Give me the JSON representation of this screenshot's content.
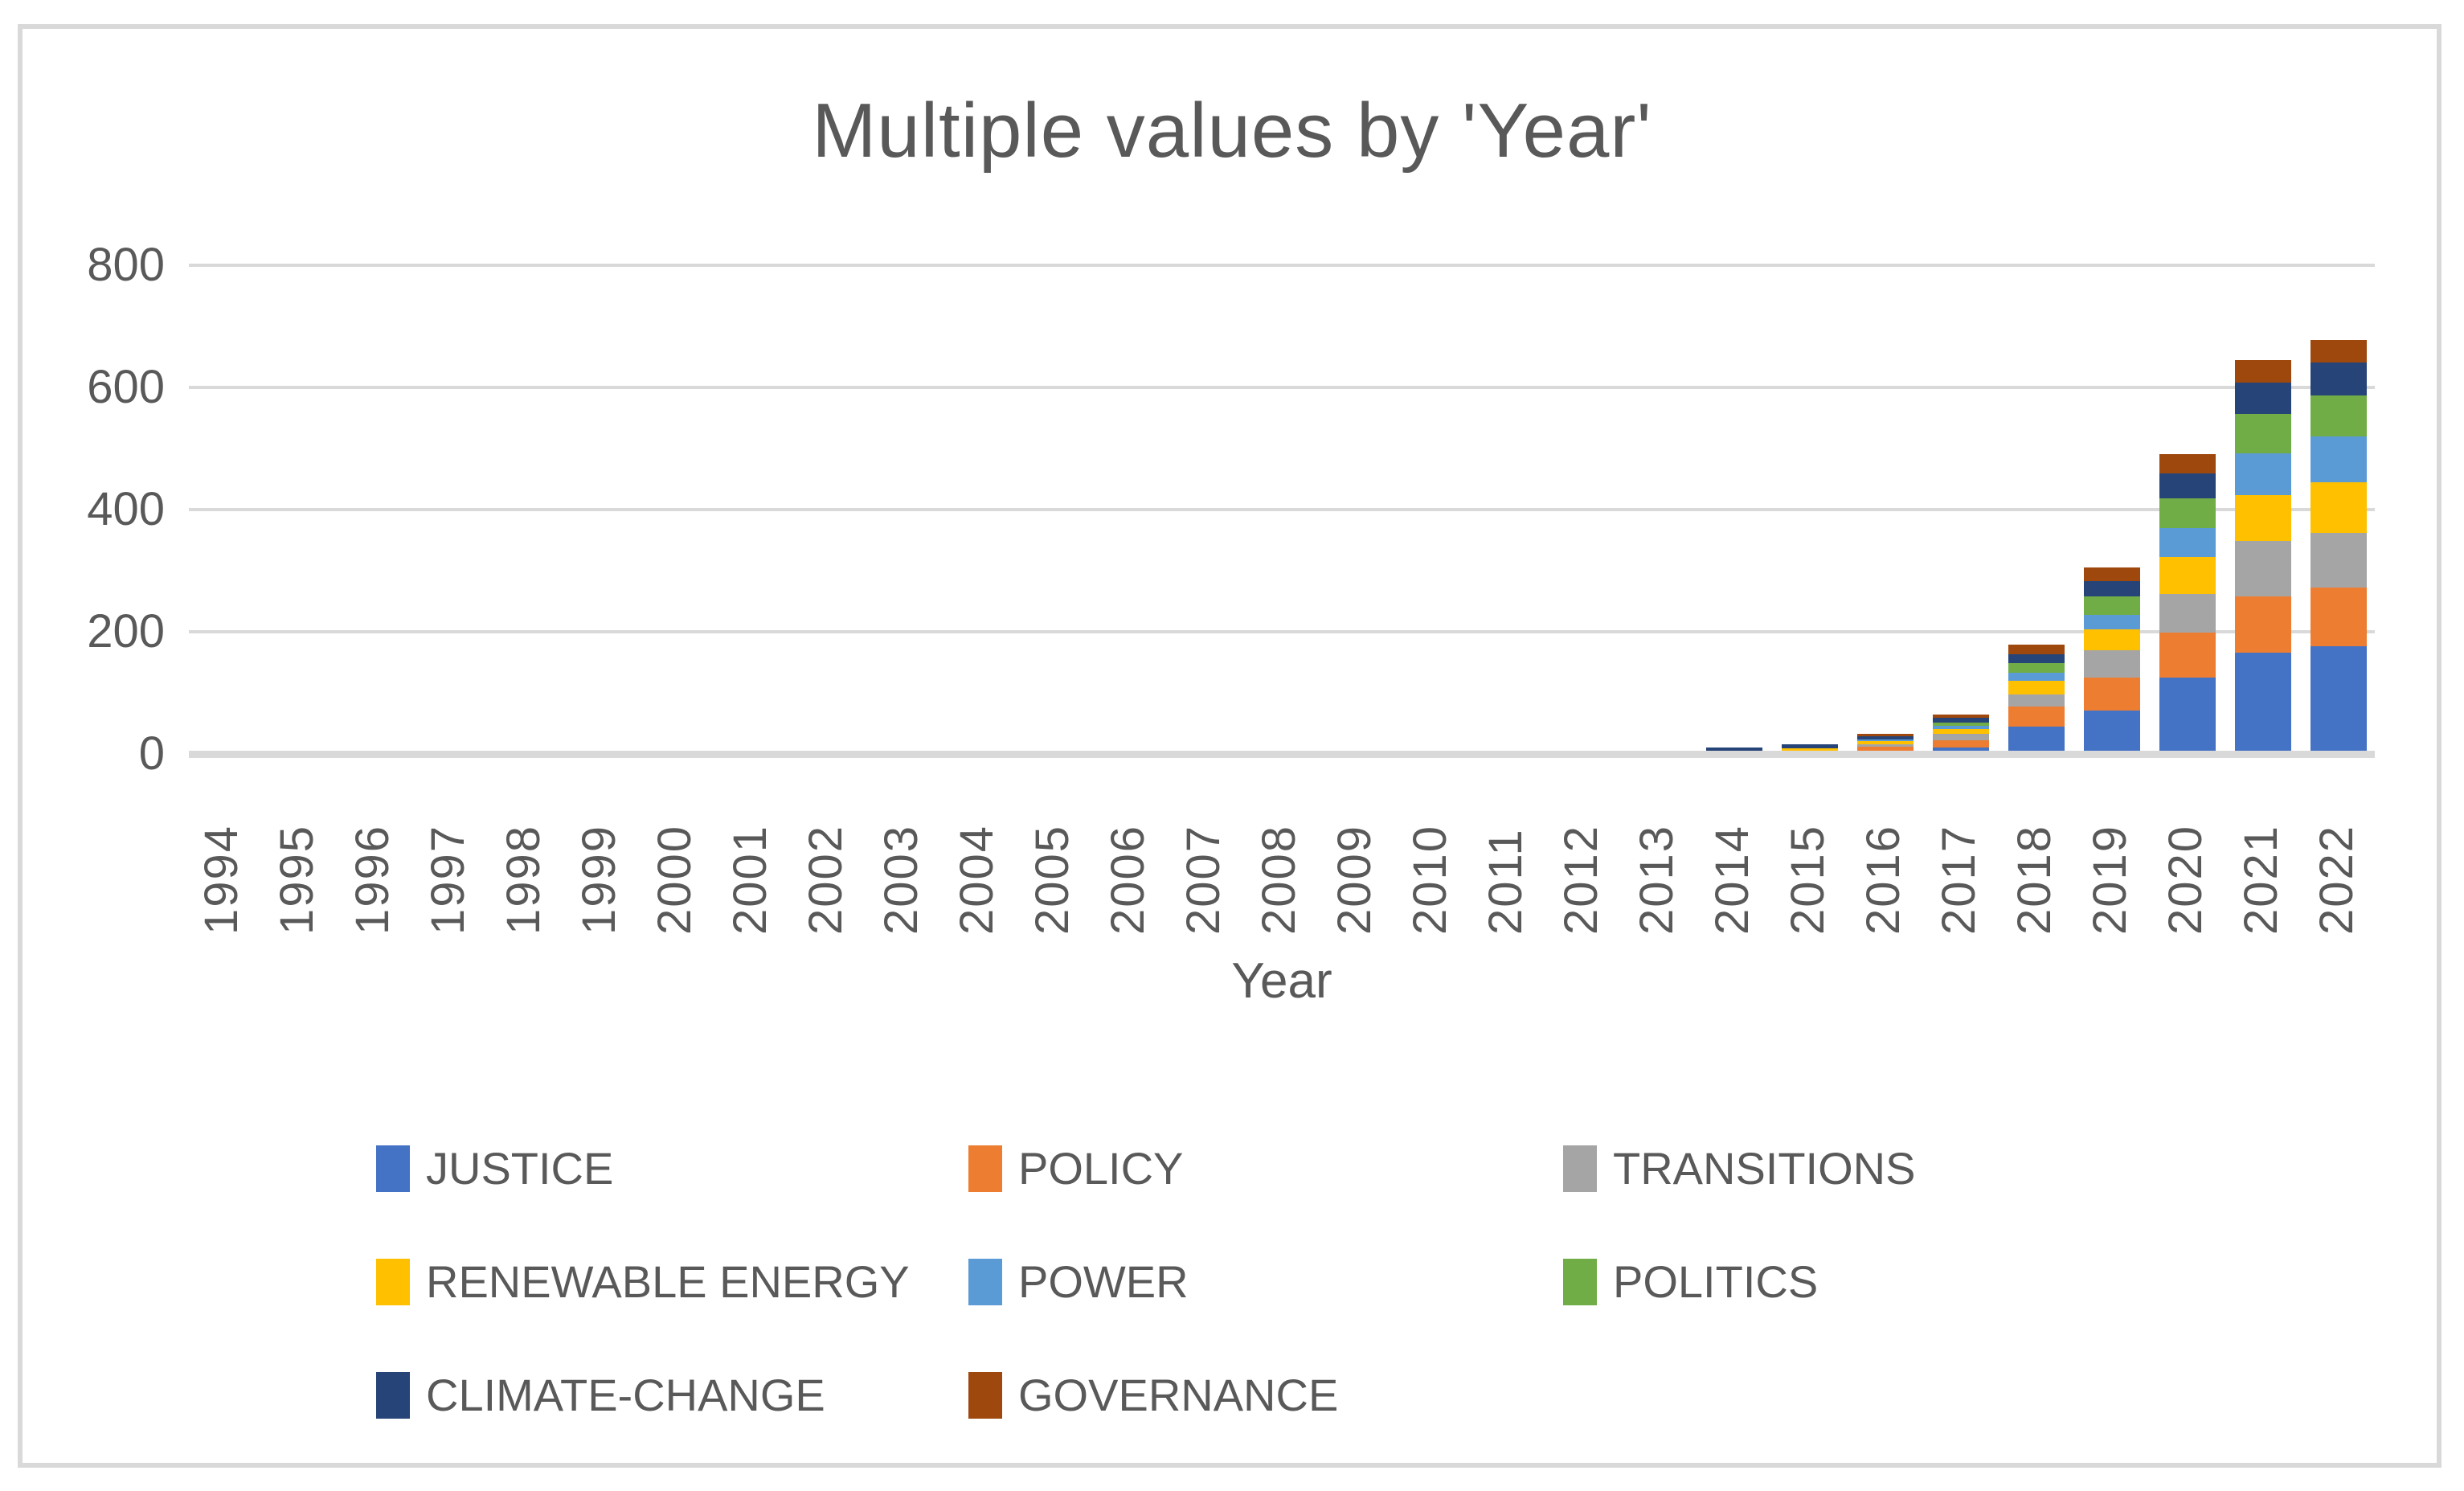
{
  "page": {
    "background_color": "#FFFFFF",
    "border_color": "#D9D9D9",
    "text_color": "#595959"
  },
  "chart_data": {
    "type": "bar",
    "stacked": true,
    "title": "Multiple values by 'Year'",
    "xlabel": "Year",
    "ylabel": "",
    "ylim": [
      0,
      800
    ],
    "yticks": [
      0,
      200,
      400,
      600,
      800
    ],
    "grid": "horizontal",
    "gridline_color": "#D9D9D9",
    "legend_position": "bottom-left",
    "categories": [
      "1994",
      "1995",
      "1996",
      "1997",
      "1998",
      "1999",
      "2000",
      "2001",
      "2002",
      "2003",
      "2004",
      "2005",
      "2006",
      "2007",
      "2008",
      "2009",
      "2010",
      "2011",
      "2012",
      "2013",
      "2014",
      "2015",
      "2016",
      "2017",
      "2018",
      "2019",
      "2020",
      "2021",
      "2022"
    ],
    "series": [
      {
        "name": "JUSTICE",
        "color": "#4472C4",
        "values": [
          0,
          0,
          0,
          0,
          0,
          0,
          0,
          0,
          0,
          0,
          0,
          0,
          0,
          0,
          0,
          0,
          0,
          0,
          0,
          0,
          0,
          0,
          0,
          5,
          40,
          66,
          120,
          161,
          171
        ]
      },
      {
        "name": "POLICY",
        "color": "#ED7D31",
        "values": [
          0,
          0,
          0,
          0,
          0,
          0,
          0,
          0,
          0,
          0,
          0,
          0,
          0,
          0,
          0,
          0,
          0,
          0,
          0,
          0,
          0,
          0,
          6,
          12,
          32,
          54,
          74,
          92,
          96
        ]
      },
      {
        "name": "TRANSITIONS",
        "color": "#A5A5A5",
        "values": [
          0,
          0,
          0,
          0,
          0,
          0,
          0,
          0,
          0,
          0,
          0,
          0,
          0,
          0,
          0,
          0,
          0,
          0,
          0,
          0,
          0,
          0,
          5,
          10,
          20,
          45,
          63,
          90,
          90
        ]
      },
      {
        "name": "RENEWABLE ENERGY",
        "color": "#FFC000",
        "values": [
          0,
          0,
          0,
          0,
          0,
          0,
          0,
          0,
          0,
          0,
          0,
          0,
          0,
          0,
          0,
          0,
          0,
          0,
          0,
          0,
          0,
          4,
          5,
          9,
          22,
          34,
          60,
          76,
          82
        ]
      },
      {
        "name": "POWER",
        "color": "#5B9BD5",
        "values": [
          0,
          0,
          0,
          0,
          0,
          0,
          0,
          0,
          0,
          0,
          0,
          0,
          0,
          0,
          0,
          0,
          0,
          0,
          0,
          0,
          0,
          0,
          3,
          5,
          14,
          24,
          48,
          68,
          75
        ]
      },
      {
        "name": "POLITICS",
        "color": "#70AD47",
        "values": [
          0,
          0,
          0,
          0,
          0,
          0,
          0,
          0,
          0,
          0,
          0,
          0,
          0,
          0,
          0,
          0,
          0,
          0,
          0,
          0,
          0,
          0,
          0,
          5,
          16,
          30,
          48,
          64,
          67
        ]
      },
      {
        "name": "CLIMATE-CHANGE",
        "color": "#264478",
        "values": [
          0,
          0,
          0,
          0,
          0,
          0,
          0,
          0,
          0,
          0,
          0,
          0,
          0,
          0,
          0,
          0,
          0,
          0,
          0,
          0,
          5,
          6,
          5,
          8,
          14,
          24,
          41,
          52,
          55
        ]
      },
      {
        "name": "GOVERNANCE",
        "color": "#9E480E",
        "values": [
          0,
          0,
          0,
          0,
          0,
          0,
          0,
          0,
          0,
          0,
          0,
          0,
          0,
          0,
          0,
          0,
          0,
          0,
          0,
          0,
          0,
          0,
          4,
          5,
          16,
          23,
          31,
          37,
          36
        ]
      }
    ],
    "totals_by_year_2014_2022": {
      "2014": 5,
      "2015": 10,
      "2016": 28,
      "2017": 59,
      "2018": 174,
      "2019": 300,
      "2020": 485,
      "2021": 640,
      "2022": 672
    }
  }
}
